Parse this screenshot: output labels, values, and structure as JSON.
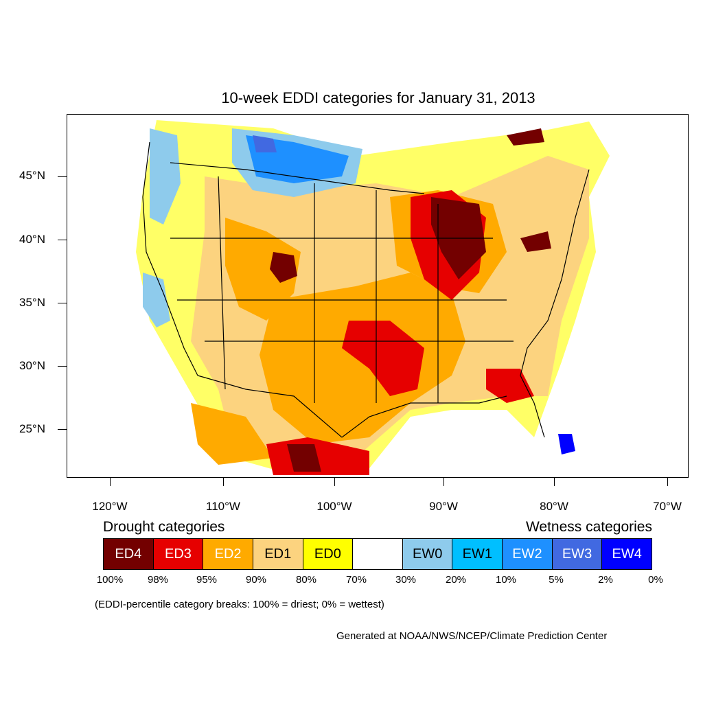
{
  "title": "10-week EDDI categories for January 31, 2013",
  "lat_labels": [
    "45°N",
    "40°N",
    "35°N",
    "30°N",
    "25°N"
  ],
  "lon_labels": [
    "120°W",
    "110°W",
    "100°W",
    "90°W",
    "80°W",
    "70°W"
  ],
  "legend": {
    "drought_heading": "Drought categories",
    "wetness_heading": "Wetness categories",
    "categories": [
      {
        "label": "ED4",
        "color": "#730000",
        "text_color": "#ffffff"
      },
      {
        "label": "ED3",
        "color": "#e60000",
        "text_color": "#ffffff"
      },
      {
        "label": "ED2",
        "color": "#ffaa00",
        "text_color": "#ffffff"
      },
      {
        "label": "ED1",
        "color": "#fcd37f",
        "text_color": "#000000"
      },
      {
        "label": "ED0",
        "color": "#ffff00",
        "text_color": "#000000"
      },
      {
        "label": "",
        "color": "#ffffff",
        "text_color": "#000000"
      },
      {
        "label": "EW0",
        "color": "#8ecbec",
        "text_color": "#000000"
      },
      {
        "label": "EW1",
        "color": "#00bfff",
        "text_color": "#000000"
      },
      {
        "label": "EW2",
        "color": "#1e90ff",
        "text_color": "#ffffff"
      },
      {
        "label": "EW3",
        "color": "#4169e1",
        "text_color": "#ffffff"
      },
      {
        "label": "EW4",
        "color": "#0000ff",
        "text_color": "#ffffff"
      }
    ],
    "percent_breaks": [
      "100%",
      "98%",
      "95%",
      "90%",
      "80%",
      "70%",
      "30%",
      "20%",
      "10%",
      "5%",
      "2%",
      "0%"
    ],
    "note": "(EDDI-percentile category breaks: 100% = driest; 0% = wettest)"
  },
  "credit": "Generated at NOAA/NWS/NCEP/Climate Prediction Center"
}
